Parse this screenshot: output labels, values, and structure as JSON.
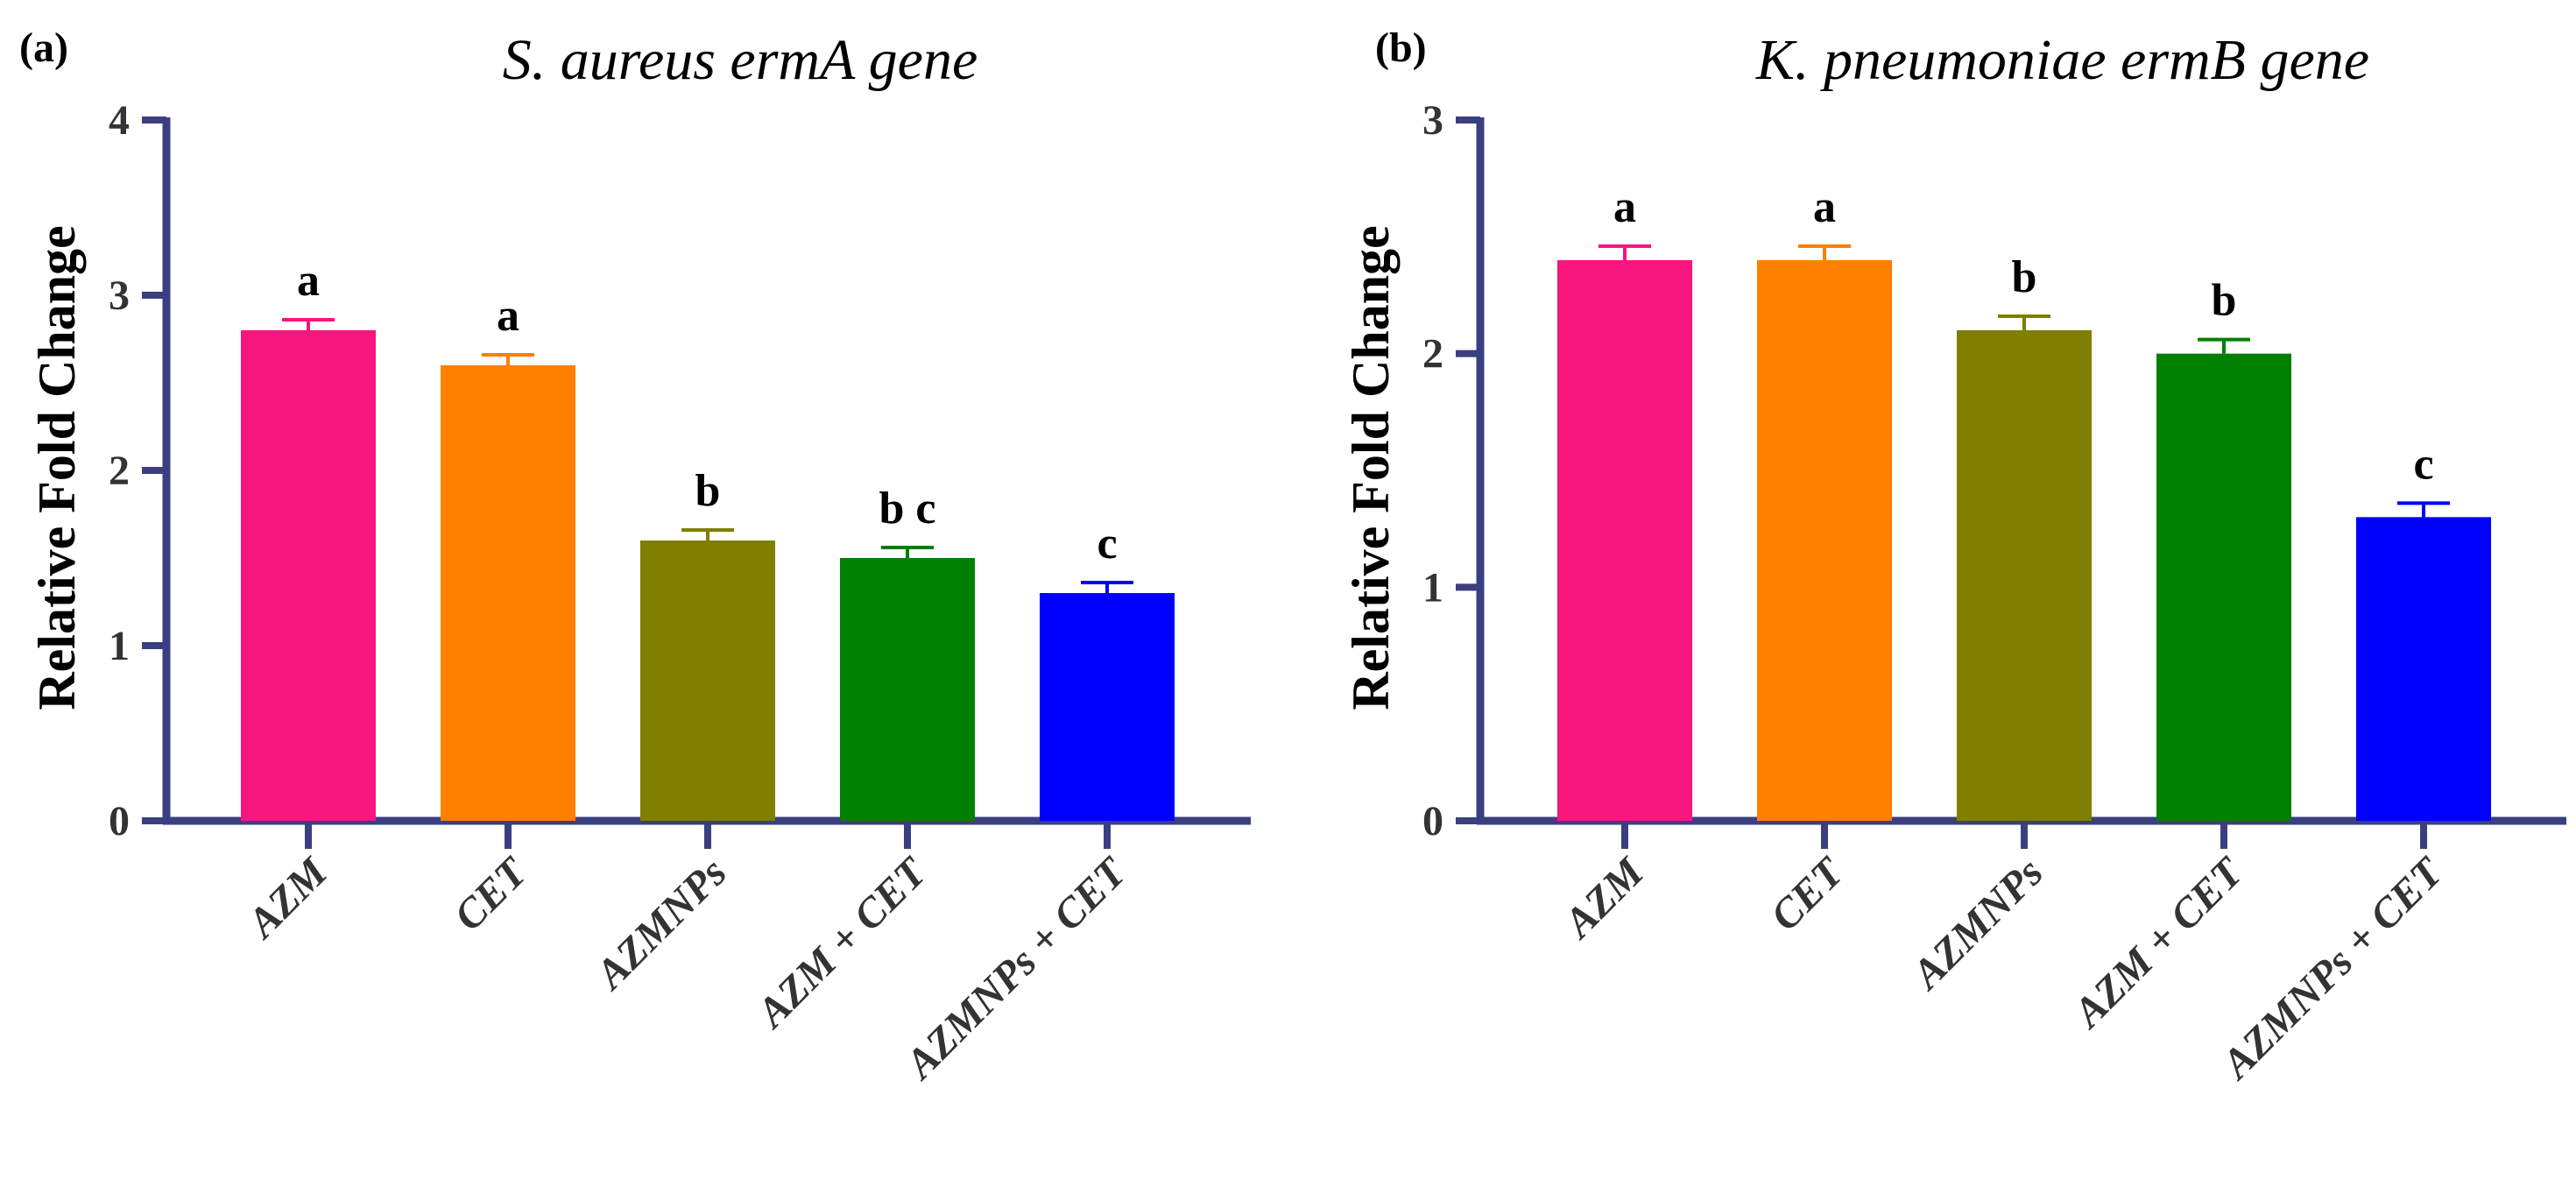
{
  "colors": {
    "axis": "#3a3f82",
    "bars": [
      "#f7157e",
      "#ff7f00",
      "#7f7f00",
      "#008000",
      "#0000ff"
    ]
  },
  "chart_data": [
    {
      "panel": "(a)",
      "type": "bar",
      "title": "S. aureus ermA gene",
      "ylabel": "Relative Fold Change",
      "xlabel": "",
      "ylim": [
        0,
        4
      ],
      "yticks": [
        0,
        1,
        2,
        3,
        4
      ],
      "categories": [
        "AZM",
        "CET",
        "AZMNPs",
        "AZM + CET",
        "AZMNPs + CET"
      ],
      "values": [
        2.8,
        2.6,
        1.6,
        1.5,
        1.3
      ],
      "errors": [
        0.06,
        0.06,
        0.06,
        0.06,
        0.06
      ],
      "significance": [
        "a",
        "a",
        "b",
        "b c",
        "c"
      ]
    },
    {
      "panel": "(b)",
      "type": "bar",
      "title": "K. pneumoniae ermB gene",
      "ylabel": "Relative Fold Change",
      "xlabel": "",
      "ylim": [
        0,
        3
      ],
      "yticks": [
        0,
        1,
        2,
        3
      ],
      "categories": [
        "AZM",
        "CET",
        "AZMNPs",
        "AZM + CET",
        "AZMNPs + CET"
      ],
      "values": [
        2.4,
        2.4,
        2.1,
        2.0,
        1.3
      ],
      "errors": [
        0.06,
        0.06,
        0.06,
        0.06,
        0.06
      ],
      "significance": [
        "a",
        "a",
        "b",
        "b",
        "c"
      ]
    }
  ]
}
